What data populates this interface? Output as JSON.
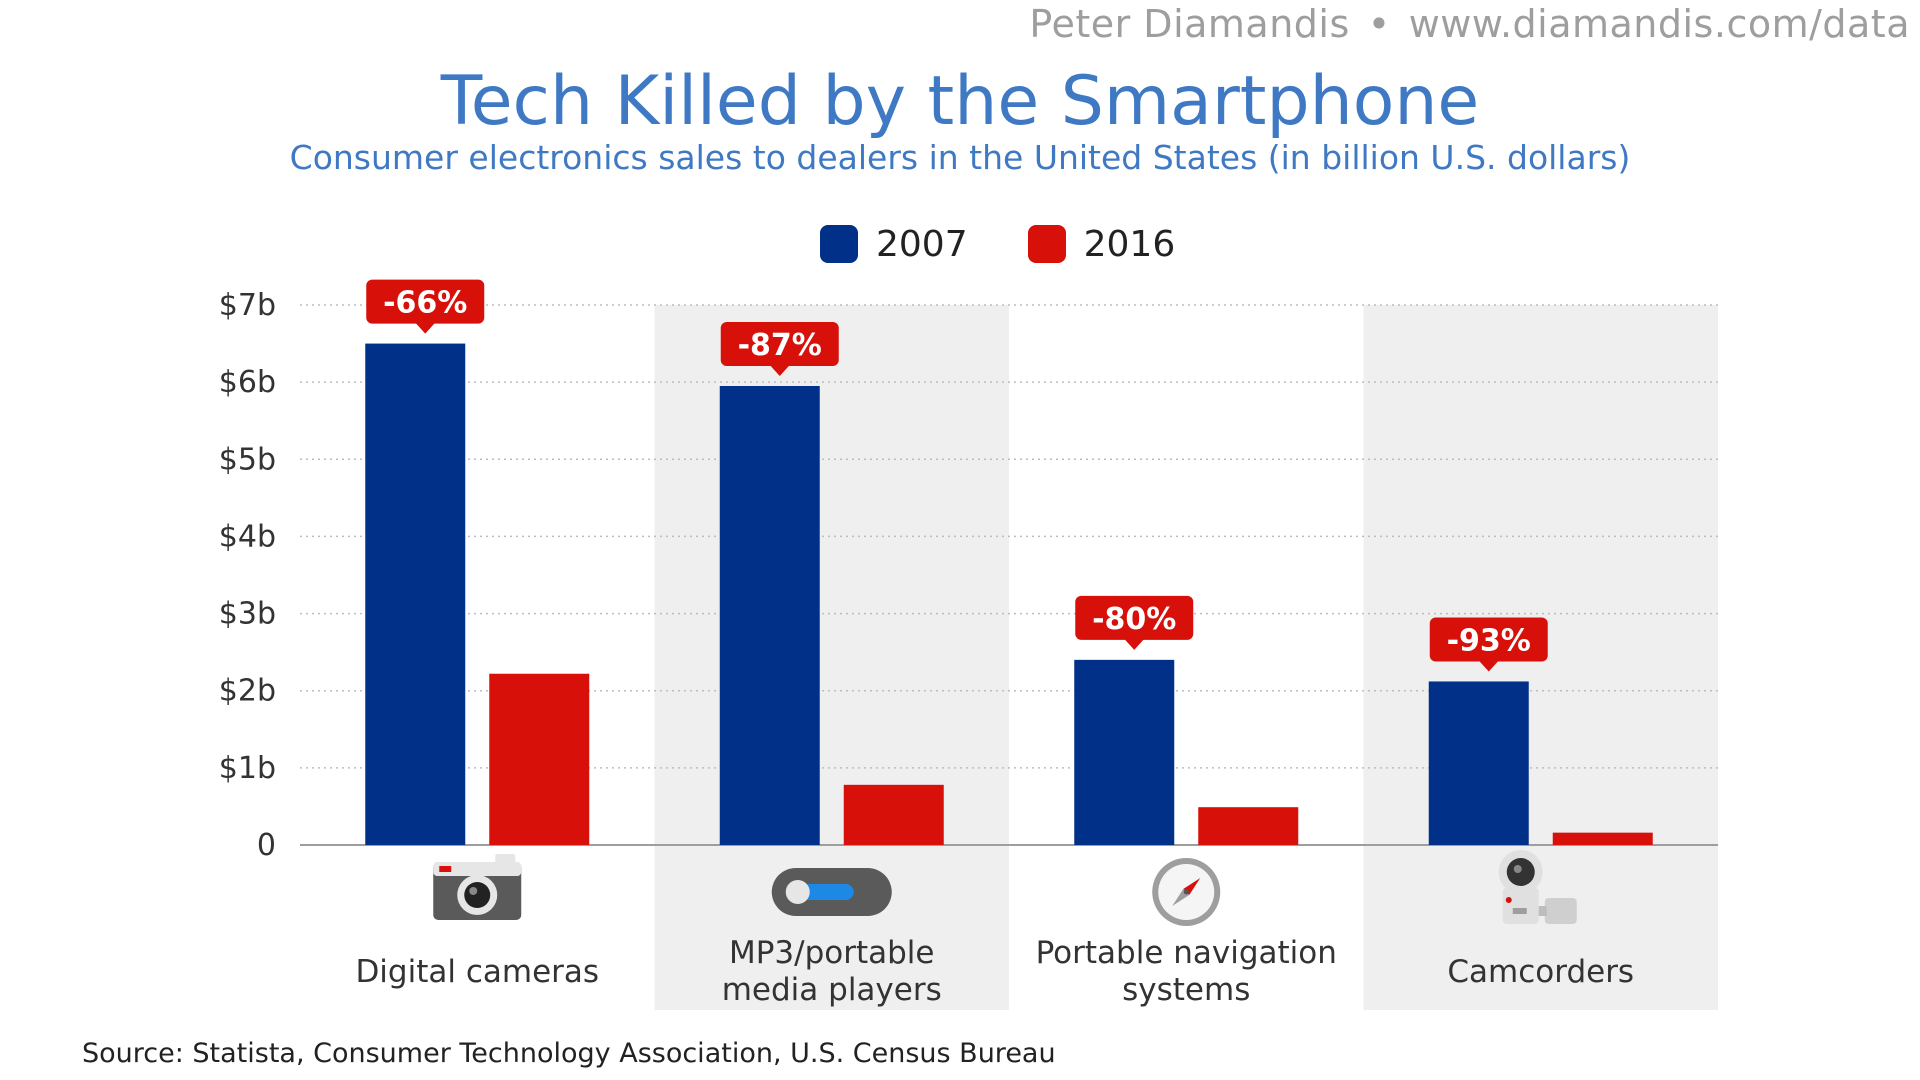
{
  "header": {
    "author": "Peter Diamandis",
    "separator": "•",
    "website": "www.diamandis.com/data"
  },
  "chart_data": {
    "type": "bar",
    "title": "Tech Killed by the Smartphone",
    "subtitle": "Consumer electronics sales to dealers in the United States (in billion U.S. dollars)",
    "categories": [
      {
        "name": "Digital cameras",
        "lines": [
          "Digital cameras"
        ],
        "icon": "camera-icon"
      },
      {
        "name": "MP3/portable media players",
        "lines": [
          "MP3/portable",
          "media players"
        ],
        "icon": "mp3-player-icon"
      },
      {
        "name": "Portable navigation systems",
        "lines": [
          "Portable navigation",
          "systems"
        ],
        "icon": "compass-icon"
      },
      {
        "name": "Camcorders",
        "lines": [
          "Camcorders"
        ],
        "icon": "camcorder-icon"
      }
    ],
    "series": [
      {
        "name": "2007",
        "color": "#003087",
        "values": [
          6.5,
          5.95,
          2.4,
          2.12
        ]
      },
      {
        "name": "2016",
        "color": "#d7100a",
        "values": [
          2.22,
          0.78,
          0.49,
          0.16
        ]
      }
    ],
    "change_labels": [
      "-66%",
      "-87%",
      "-80%",
      "-93%"
    ],
    "change_color": "#d7100a",
    "ylim": [
      0,
      7
    ],
    "yticks": [
      {
        "value": 0,
        "label": "0"
      },
      {
        "value": 1,
        "label": "$1b"
      },
      {
        "value": 2,
        "label": "$2b"
      },
      {
        "value": 3,
        "label": "$3b"
      },
      {
        "value": 4,
        "label": "$4b"
      },
      {
        "value": 5,
        "label": "$5b"
      },
      {
        "value": 6,
        "label": "$6b"
      },
      {
        "value": 7,
        "label": "$7b"
      }
    ],
    "grid": true,
    "legend_position": "top-center"
  },
  "source": "Source: Statista, Consumer Technology Association, U.S. Census Bureau",
  "colors": {
    "title": "#3f79c4",
    "shade": "#efefef"
  }
}
